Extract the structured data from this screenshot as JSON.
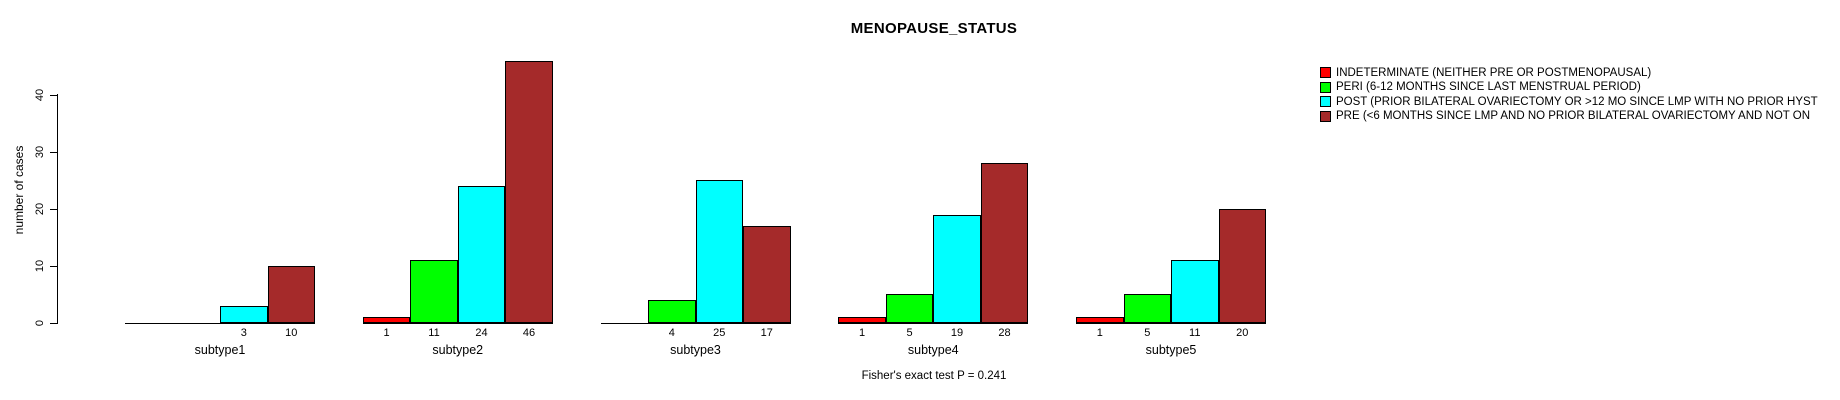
{
  "title": "MENOPAUSE_STATUS",
  "footer": "Fisher's exact test P = 0.241",
  "y_axis": {
    "label": "number of cases",
    "ticks": [
      0,
      10,
      20,
      30,
      40
    ]
  },
  "legend": {
    "items": [
      {
        "name": "indeterminate",
        "label": "INDETERMINATE (NEITHER PRE OR POSTMENOPAUSAL)",
        "color": "#FF0000"
      },
      {
        "name": "peri",
        "label": "PERI (6-12 MONTHS SINCE LAST MENSTRUAL PERIOD)",
        "color": "#00FF00"
      },
      {
        "name": "post",
        "label": "POST (PRIOR BILATERAL OVARIECTOMY OR >12 MO SINCE LMP WITH NO PRIOR HYST",
        "color": "#00FFFF"
      },
      {
        "name": "pre",
        "label": "PRE (<6 MONTHS SINCE LMP AND NO PRIOR BILATERAL OVARIECTOMY AND NOT ON",
        "color": "#A52A2A"
      }
    ]
  },
  "chart_data": {
    "type": "bar",
    "grouped": true,
    "title": "MENOPAUSE_STATUS",
    "xlabel": "",
    "ylabel": "number of cases",
    "ylim": [
      0,
      46
    ],
    "yticks": [
      0,
      10,
      20,
      30,
      40
    ],
    "grid": false,
    "legend_position": "top-right",
    "value_labels": "shown under each nonzero bar",
    "categories": [
      "subtype1",
      "subtype2",
      "subtype3",
      "subtype4",
      "subtype5"
    ],
    "series": [
      {
        "name": "INDETERMINATE",
        "color": "#FF0000",
        "values": [
          0,
          1,
          0,
          1,
          1
        ]
      },
      {
        "name": "PERI",
        "color": "#00FF00",
        "values": [
          0,
          11,
          4,
          5,
          5
        ]
      },
      {
        "name": "POST",
        "color": "#00FFFF",
        "values": [
          3,
          24,
          25,
          19,
          11
        ]
      },
      {
        "name": "PRE",
        "color": "#A52A2A",
        "values": [
          10,
          46,
          17,
          28,
          20
        ]
      }
    ],
    "annotation": "Fisher's exact test P = 0.241"
  }
}
